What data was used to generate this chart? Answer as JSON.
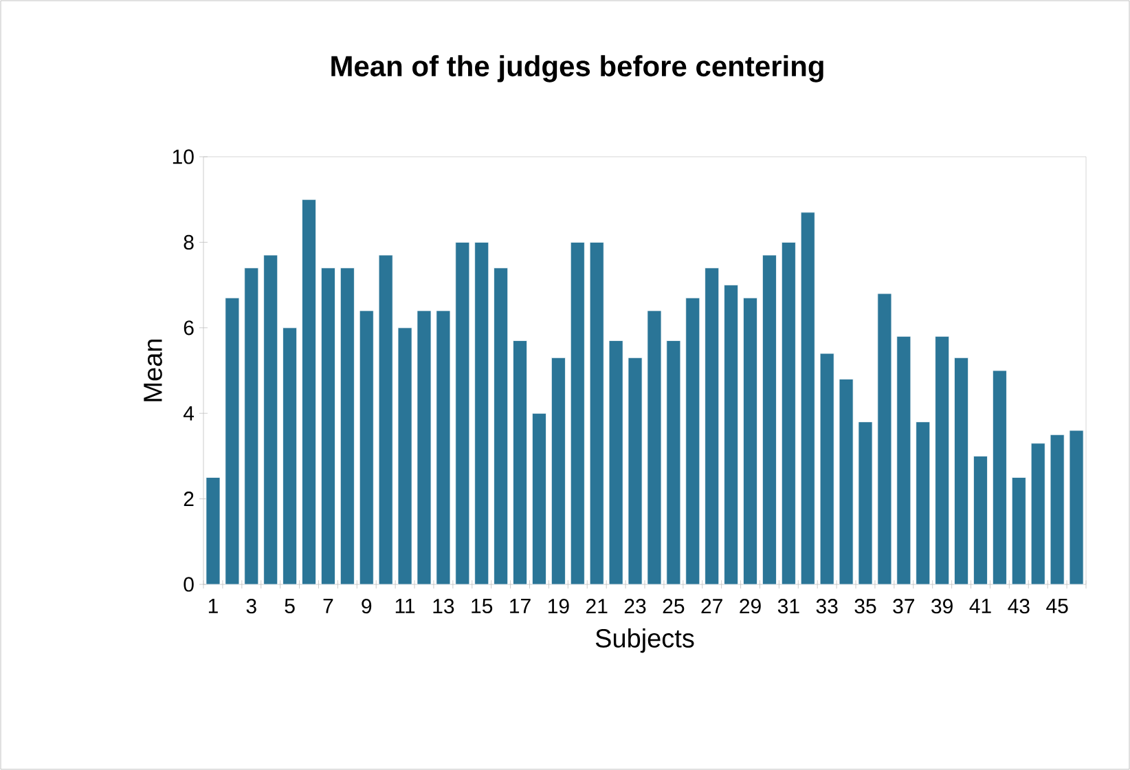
{
  "chart_data": {
    "type": "bar",
    "title": "Mean of the judges before centering",
    "xlabel": "Subjects",
    "ylabel": "Mean",
    "categories": [
      "1",
      null,
      "3",
      null,
      "5",
      null,
      "7",
      null,
      "9",
      null,
      "11",
      null,
      "13",
      null,
      "15",
      null,
      "17",
      null,
      "19",
      null,
      "21",
      null,
      "23",
      null,
      "25",
      null,
      "27",
      null,
      "29",
      null,
      "31",
      null,
      "33",
      null,
      "35",
      null,
      "37",
      null,
      "39",
      null,
      "41",
      null,
      "43",
      null,
      "45",
      null
    ],
    "values": [
      2.5,
      6.7,
      7.4,
      7.7,
      6.0,
      9.0,
      7.4,
      7.4,
      6.4,
      7.7,
      6.0,
      6.4,
      6.4,
      8.0,
      8.0,
      7.4,
      5.7,
      4.0,
      5.3,
      8.0,
      8.0,
      5.7,
      5.3,
      6.4,
      5.7,
      6.7,
      7.4,
      7.0,
      6.7,
      7.7,
      8.0,
      8.7,
      5.4,
      4.8,
      3.8,
      6.8,
      5.8,
      3.8,
      5.8,
      5.3,
      3.0,
      5.0,
      2.5,
      3.3,
      3.5,
      3.6
    ],
    "color": "#2a7597",
    "ylim": [
      0,
      10
    ],
    "yticks": [
      0,
      2,
      4,
      6,
      8,
      10
    ],
    "grid": false
  }
}
